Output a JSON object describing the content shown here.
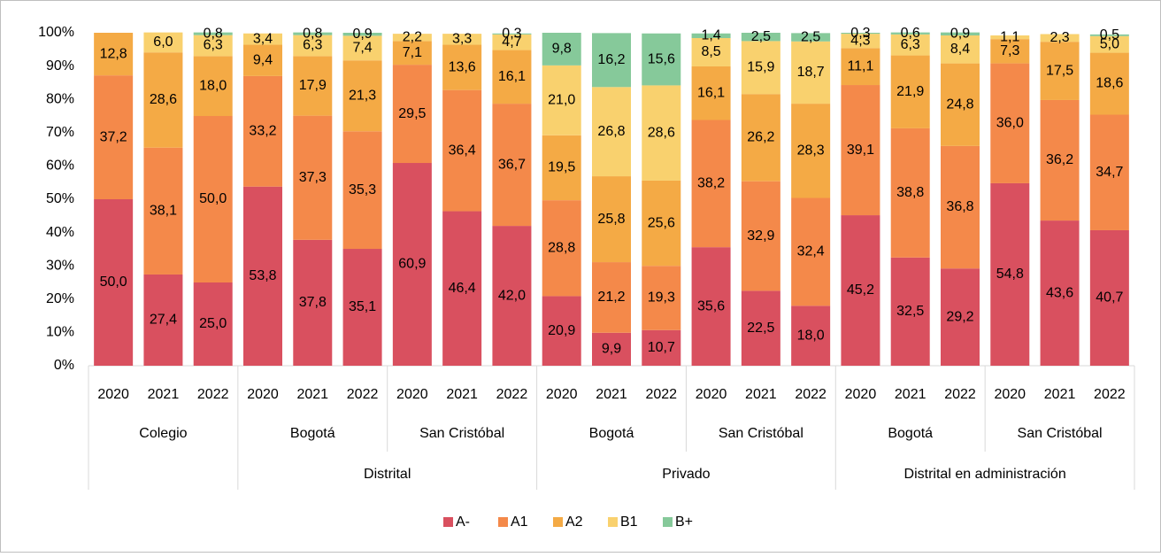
{
  "chart_data": {
    "type": "stacked_bar_100",
    "ylim": [
      0,
      100
    ],
    "yticks": [
      {
        "value": 0,
        "label": "0%"
      },
      {
        "value": 10,
        "label": "10%"
      },
      {
        "value": 20,
        "label": "20%"
      },
      {
        "value": 30,
        "label": "30%"
      },
      {
        "value": 40,
        "label": "40%"
      },
      {
        "value": 50,
        "label": "50%"
      },
      {
        "value": 60,
        "label": "60%"
      },
      {
        "value": 70,
        "label": "70%"
      },
      {
        "value": 80,
        "label": "80%"
      },
      {
        "value": 90,
        "label": "90%"
      },
      {
        "value": 100,
        "label": "100%"
      }
    ],
    "groups": [
      {
        "subgroups": [
          {
            "name": "Colegio",
            "categories": [
              "2020",
              "2021",
              "2022"
            ]
          }
        ]
      },
      {
        "name": "Distrital",
        "subgroups": [
          {
            "name": "Bogotá",
            "categories": [
              "2020",
              "2021",
              "2022"
            ]
          },
          {
            "name": "San Cristóbal",
            "categories": [
              "2020",
              "2021",
              "2022"
            ]
          }
        ]
      },
      {
        "name": "Privado",
        "subgroups": [
          {
            "name": "Bogotá",
            "categories": [
              "2020",
              "2021",
              "2022"
            ]
          },
          {
            "name": "San Cristóbal",
            "categories": [
              "2020",
              "2021",
              "2022"
            ]
          }
        ]
      },
      {
        "name": "Distrital en administración",
        "subgroups": [
          {
            "name": "Bogotá",
            "categories": [
              "2020",
              "2021",
              "2022"
            ]
          },
          {
            "name": "San Cristóbal",
            "categories": [
              "2020",
              "2021",
              "2022"
            ]
          }
        ]
      }
    ],
    "series": [
      {
        "name": "A-",
        "color": "#d9505f",
        "values": [
          50.0,
          27.4,
          25.0,
          53.8,
          37.8,
          35.1,
          60.9,
          46.4,
          42.0,
          20.9,
          9.9,
          10.7,
          35.6,
          22.5,
          18.0,
          45.2,
          32.5,
          29.2,
          54.8,
          43.6,
          40.7
        ],
        "value_labels": [
          "50,0",
          "27,4",
          "25,0",
          "53,8",
          "37,8",
          "35,1",
          "60,9",
          "46,4",
          "42,0",
          "20,9",
          "9,9",
          "10,7",
          "35,6",
          "22,5",
          "18,0",
          "45,2",
          "32,5",
          "29,2",
          "54,8",
          "43,6",
          "40,7"
        ]
      },
      {
        "name": "A1",
        "color": "#f4894a",
        "values": [
          37.2,
          38.1,
          50.0,
          33.2,
          37.3,
          35.3,
          29.5,
          36.4,
          36.7,
          28.8,
          21.2,
          19.3,
          38.2,
          32.9,
          32.4,
          39.1,
          38.8,
          36.8,
          36.0,
          36.2,
          34.7
        ],
        "value_labels": [
          "37,2",
          "38,1",
          "50,0",
          "33,2",
          "37,3",
          "35,3",
          "29,5",
          "36,4",
          "36,7",
          "28,8",
          "21,2",
          "19,3",
          "38,2",
          "32,9",
          "32,4",
          "39,1",
          "38,8",
          "36,8",
          "36,0",
          "36,2",
          "34,7"
        ]
      },
      {
        "name": "A2",
        "color": "#f4aa45",
        "values": [
          12.8,
          28.6,
          18.0,
          9.4,
          17.9,
          21.3,
          7.1,
          13.6,
          16.1,
          19.5,
          25.8,
          25.6,
          16.1,
          26.2,
          28.3,
          11.1,
          21.9,
          24.8,
          7.3,
          17.5,
          18.6
        ],
        "value_labels": [
          "12,8",
          "28,6",
          "18,0",
          "9,4",
          "17,9",
          "21,3",
          "7,1",
          "13,6",
          "16,1",
          "19,5",
          "25,8",
          "25,6",
          "16,1",
          "26,2",
          "28,3",
          "11,1",
          "21,9",
          "24,8",
          "7,3",
          "17,5",
          "18,6"
        ]
      },
      {
        "name": "B1",
        "color": "#f9d16e",
        "values": [
          null,
          6.0,
          6.3,
          3.4,
          6.3,
          7.4,
          2.2,
          3.3,
          4.7,
          21.0,
          26.8,
          28.6,
          8.5,
          15.9,
          18.7,
          4.3,
          6.3,
          8.4,
          1.1,
          2.3,
          5.0
        ],
        "value_labels": [
          null,
          "6,0",
          "6,3",
          "3,4",
          "6,3",
          "7,4",
          "2,2",
          "3,3",
          "4,7",
          "21,0",
          "26,8",
          "28,6",
          "8,5",
          "15,9",
          "18,7",
          "4,3",
          "6,3",
          "8,4",
          "1,1",
          "2,3",
          "5,0"
        ]
      },
      {
        "name": "B+",
        "color": "#86c99a",
        "values": [
          null,
          null,
          0.8,
          null,
          0.8,
          0.9,
          null,
          null,
          0.3,
          9.8,
          16.2,
          15.6,
          1.4,
          2.5,
          2.5,
          0.3,
          0.6,
          0.9,
          null,
          null,
          0.5
        ],
        "value_labels": [
          null,
          null,
          "0,8",
          null,
          "0,8",
          "0,9",
          null,
          null,
          "0,3",
          "9,8",
          "16,2",
          "15,6",
          "1,4",
          "2,5",
          "2,5",
          "0,3",
          "0,6",
          "0,9",
          null,
          null,
          "0,5"
        ]
      }
    ],
    "legend": "bottom"
  }
}
